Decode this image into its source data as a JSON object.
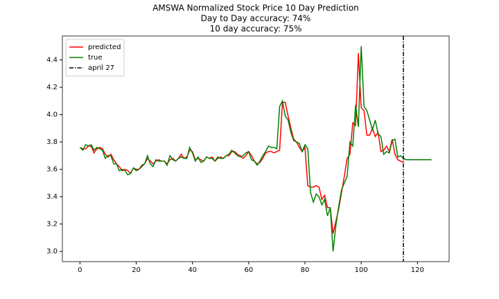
{
  "chart_data": {
    "type": "line",
    "title": "AMSWA Normalized Stock Price 10 Day Prediction",
    "subtitle": [
      "Day to Day accuracy: 74%",
      "10 day accuracy: 75%"
    ],
    "x": [
      0,
      1,
      2,
      3,
      4,
      5,
      6,
      7,
      8,
      9,
      10,
      11,
      12,
      13,
      14,
      15,
      16,
      17,
      18,
      19,
      20,
      21,
      22,
      23,
      24,
      25,
      26,
      27,
      28,
      29,
      30,
      31,
      32,
      33,
      34,
      35,
      36,
      37,
      38,
      39,
      40,
      41,
      42,
      43,
      44,
      45,
      46,
      47,
      48,
      49,
      50,
      51,
      52,
      53,
      54,
      55,
      56,
      57,
      58,
      59,
      60,
      61,
      62,
      63,
      64,
      65,
      66,
      67,
      68,
      69,
      70,
      71,
      72,
      73,
      74,
      75,
      76,
      77,
      78,
      79,
      80,
      81,
      82,
      83,
      84,
      85,
      86,
      87,
      88,
      89,
      90,
      91,
      92,
      93,
      94,
      95,
      96,
      97,
      98,
      99,
      100,
      101,
      102,
      103,
      104,
      105,
      106,
      107,
      108,
      109,
      110,
      111,
      112,
      113,
      114,
      115,
      116,
      117,
      118,
      119,
      120,
      121,
      122,
      123,
      124,
      125
    ],
    "series": [
      {
        "name": "predicted",
        "color": "#ff0000",
        "values": [
          3.76,
          3.75,
          3.75,
          3.77,
          3.77,
          3.72,
          3.75,
          3.76,
          3.75,
          3.71,
          3.69,
          3.71,
          3.67,
          3.64,
          3.62,
          3.59,
          3.6,
          3.59,
          3.57,
          3.61,
          3.6,
          3.6,
          3.62,
          3.64,
          3.68,
          3.66,
          3.64,
          3.66,
          3.67,
          3.66,
          3.66,
          3.64,
          3.67,
          3.68,
          3.66,
          3.68,
          3.71,
          3.68,
          3.69,
          3.74,
          3.73,
          3.67,
          3.68,
          3.67,
          3.66,
          3.69,
          3.68,
          3.69,
          3.66,
          3.68,
          3.69,
          3.68,
          3.7,
          3.7,
          3.73,
          3.73,
          3.71,
          3.7,
          3.68,
          3.7,
          3.73,
          3.7,
          3.66,
          3.64,
          3.65,
          3.68,
          3.72,
          3.73,
          3.73,
          3.72,
          3.73,
          3.74,
          4.09,
          4.09,
          3.99,
          3.9,
          3.82,
          3.8,
          3.76,
          3.73,
          3.76,
          3.48,
          3.47,
          3.47,
          3.48,
          3.47,
          3.38,
          3.41,
          3.32,
          3.32,
          3.13,
          3.22,
          3.31,
          3.43,
          3.55,
          3.68,
          3.71,
          3.94,
          3.92,
          4.45,
          4.05,
          4.03,
          3.85,
          3.85,
          3.9,
          3.84,
          3.87,
          3.73,
          3.74,
          3.77,
          3.73,
          3.82,
          3.71,
          3.67,
          3.66,
          3.65,
          null,
          null,
          null,
          null,
          null,
          null,
          null,
          null,
          null,
          null
        ]
      },
      {
        "name": "true",
        "color": "#008000",
        "values": [
          3.76,
          3.74,
          3.78,
          3.77,
          3.78,
          3.74,
          3.76,
          3.75,
          3.74,
          3.68,
          3.7,
          3.7,
          3.64,
          3.64,
          3.59,
          3.6,
          3.59,
          3.56,
          3.57,
          3.61,
          3.59,
          3.6,
          3.63,
          3.64,
          3.7,
          3.64,
          3.62,
          3.67,
          3.66,
          3.66,
          3.66,
          3.63,
          3.7,
          3.67,
          3.66,
          3.68,
          3.69,
          3.68,
          3.68,
          3.76,
          3.72,
          3.66,
          3.69,
          3.65,
          3.66,
          3.69,
          3.68,
          3.68,
          3.66,
          3.69,
          3.68,
          3.68,
          3.7,
          3.71,
          3.74,
          3.72,
          3.7,
          3.69,
          3.7,
          3.72,
          3.73,
          3.67,
          3.66,
          3.63,
          3.66,
          3.7,
          3.73,
          3.77,
          3.76,
          3.76,
          3.75,
          4.06,
          4.1,
          3.99,
          3.96,
          3.87,
          3.81,
          3.8,
          3.79,
          3.73,
          3.78,
          3.75,
          3.43,
          3.36,
          3.42,
          3.4,
          3.34,
          3.38,
          3.26,
          3.32,
          3.0,
          3.19,
          3.33,
          3.45,
          3.5,
          3.55,
          3.8,
          3.77,
          4.07,
          3.91,
          4.5,
          4.06,
          4.03,
          3.96,
          3.89,
          3.96,
          3.86,
          3.84,
          3.71,
          3.73,
          3.72,
          3.81,
          3.82,
          3.69,
          3.7,
          3.68,
          3.67,
          3.67,
          3.67,
          3.67,
          3.67,
          3.67,
          3.67,
          3.67,
          3.67,
          3.67
        ]
      }
    ],
    "vline": {
      "name": "april 27",
      "x": 115,
      "color": "#000000"
    },
    "xlim": [
      -6.25,
      131.25
    ],
    "ylim": [
      2.925,
      4.575
    ],
    "xticks": [
      0,
      20,
      40,
      60,
      80,
      100,
      120
    ],
    "yticks": [
      {
        "value": 3,
        "label": "3.0"
      },
      3.2,
      3.4,
      3.6,
      3.8,
      {
        "value": 4,
        "label": "4.0"
      },
      4.2,
      4.4
    ],
    "legend": "upper left",
    "grid": false
  }
}
